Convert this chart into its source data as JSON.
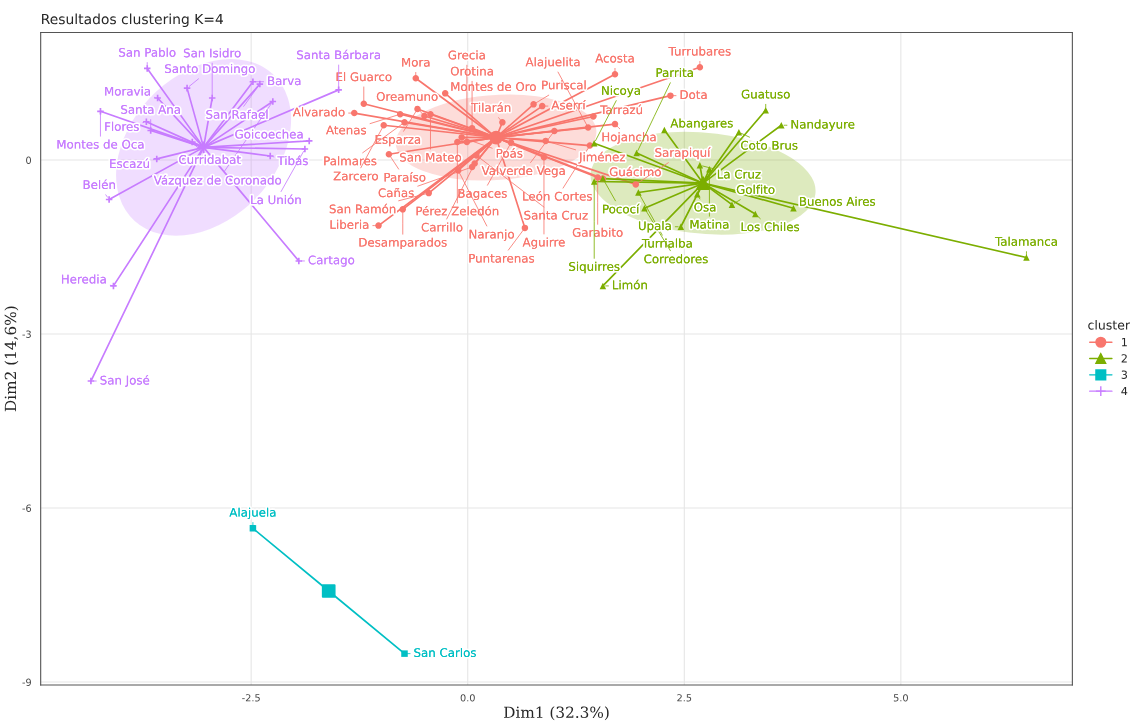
{
  "chart_data": {
    "type": "scatter",
    "title": "Resultados clustering K=4",
    "xlabel": "Dim1 (32.3%)",
    "ylabel": "Dim2 (14,6%)",
    "legend_title": "cluster",
    "legend": "right",
    "grid": true,
    "xlim": [
      -4.93,
      6.98
    ],
    "ylim": [
      -9.05,
      2.2
    ],
    "xticks": [
      -2.5,
      {
        "value": 0,
        "label": "0.0"
      },
      2.5,
      {
        "value": 5,
        "label": "5.0"
      }
    ],
    "yticks": [
      -9,
      -6,
      -3,
      0
    ],
    "series": [
      {
        "name": "1",
        "color": "#f8766d",
        "marker": "circle",
        "x": [
          -0.6,
          -0.5,
          1.7,
          2.68,
          -0.58,
          -0.26,
          0.4,
          0.86,
          2.34,
          -1.2,
          -0.78,
          -0.43,
          0.76,
          1.45,
          -1.31,
          0.05,
          1.0,
          1.39,
          1.7,
          1.41,
          -0.73,
          -0.97,
          -0.07,
          0.5,
          0.9,
          -0.91,
          -0.12,
          0.08,
          -0.01,
          0.1,
          0.05,
          0.88,
          1.5,
          1.56,
          1.94,
          -0.45,
          -0.11,
          -0.75,
          -1.03,
          0.66
        ],
        "values": [
          1.41,
          0.76,
          1.48,
          1.6,
          0.88,
          1.15,
          0.65,
          0.93,
          1.11,
          0.97,
          0.79,
          0.79,
          0.96,
          0.75,
          0.81,
          0.55,
          0.5,
          0.56,
          0.62,
          0.25,
          0.65,
          0.6,
          0.39,
          0.3,
          0.33,
          0.1,
          0.31,
          -0.06,
          0.31,
          0.08,
          -0.12,
          0.05,
          -0.3,
          -0.32,
          -0.42,
          -0.57,
          -0.18,
          -0.85,
          -1.13,
          -1.17
        ],
        "value_labels": [
          "Mora",
          "Oreamuno",
          "Acosta",
          "Turrubares",
          "Esparza",
          "Montes de Oro",
          "Tilarán",
          "Aserrí",
          "Dota",
          "El Guarco",
          "Atenas",
          "San Mateo",
          "Puriscal",
          "Tarrazú",
          "Alvarado",
          "Orotina",
          "Valverde Vega",
          "Alajuelita",
          "Hojancha",
          "León Cortes",
          "Palmares",
          "Zarcero",
          "Poás",
          "Bagaces",
          "Jiménez",
          "Paraíso",
          "Pérez Zeledón",
          "Carrillo",
          "Grecia",
          "Santa Cruz",
          "Cañas",
          "Aguirre",
          "Garabito",
          "Guácimo",
          "Sarapiquí",
          "San Ramón",
          "Naranjo",
          "Desamparados",
          "Liberia",
          "Puntarenas"
        ]
      },
      {
        "name": "2",
        "color": "#7cae00",
        "marker": "triangle",
        "x": [
          2.27,
          3.44,
          3.62,
          1.46,
          1.95,
          3.13,
          2.68,
          2.79,
          2.65,
          1.46,
          1.56,
          1.97,
          2.04,
          3.05,
          3.76,
          3.32,
          2.46,
          1.56,
          6.45
        ],
        "values": [
          0.52,
          0.86,
          0.6,
          0.29,
          0.12,
          0.48,
          -0.09,
          -0.16,
          -0.59,
          -0.37,
          -0.32,
          -0.56,
          -0.83,
          -0.77,
          -0.83,
          -0.93,
          -1.15,
          -2.17,
          -1.68
        ],
        "value_labels": [
          "Abangares",
          "Guatuso",
          "Nandayure",
          "Nicoya",
          "Parrita",
          "Coto Brus",
          "La Cruz",
          "Matina",
          "Osa",
          "Siquirres",
          "Pococí",
          "Turrialba",
          "Corredores",
          "Golfito",
          "Buenos Aires",
          "Los Chiles",
          "Upala",
          "Limón",
          "Talamanca"
        ]
      },
      {
        "name": "3",
        "color": "#00bfc4",
        "marker": "square",
        "x": [
          -2.48,
          -0.73
        ],
        "values": [
          -6.35,
          -8.51
        ],
        "value_labels": [
          "Alajuela",
          "San Carlos"
        ]
      },
      {
        "name": "4",
        "color": "#c77cff",
        "marker": "cross",
        "x": [
          -3.7,
          -3.24,
          -3.58,
          -2.95,
          -2.48,
          -1.49,
          -2.4,
          -3.71,
          -2.25,
          -4.24,
          -3.18,
          -3.66,
          -3.59,
          -2.28,
          -1.83,
          -1.88,
          -4.14,
          -4.09,
          -1.95,
          -4.35
        ],
        "values": [
          1.58,
          1.24,
          1.07,
          1.07,
          1.35,
          1.21,
          1.31,
          0.66,
          1.01,
          0.84,
          0.31,
          0.51,
          0.02,
          0.07,
          0.33,
          0.19,
          -0.68,
          -2.17,
          -1.74,
          -3.81
        ],
        "value_labels": [
          "San Pablo",
          "Santo Domingo",
          "Moravia",
          "San Isidro",
          "Barva",
          "Santa Bárbara",
          "San Rafael",
          "Flores",
          "Vázquez de Coronado",
          "Montes de Oca",
          "Curridabat",
          "Santa Ana",
          "Escazú",
          "Tibás",
          "Goicoechea",
          "La Unión",
          "Belén",
          "Heredia",
          "Cartago",
          "San José"
        ]
      }
    ]
  }
}
